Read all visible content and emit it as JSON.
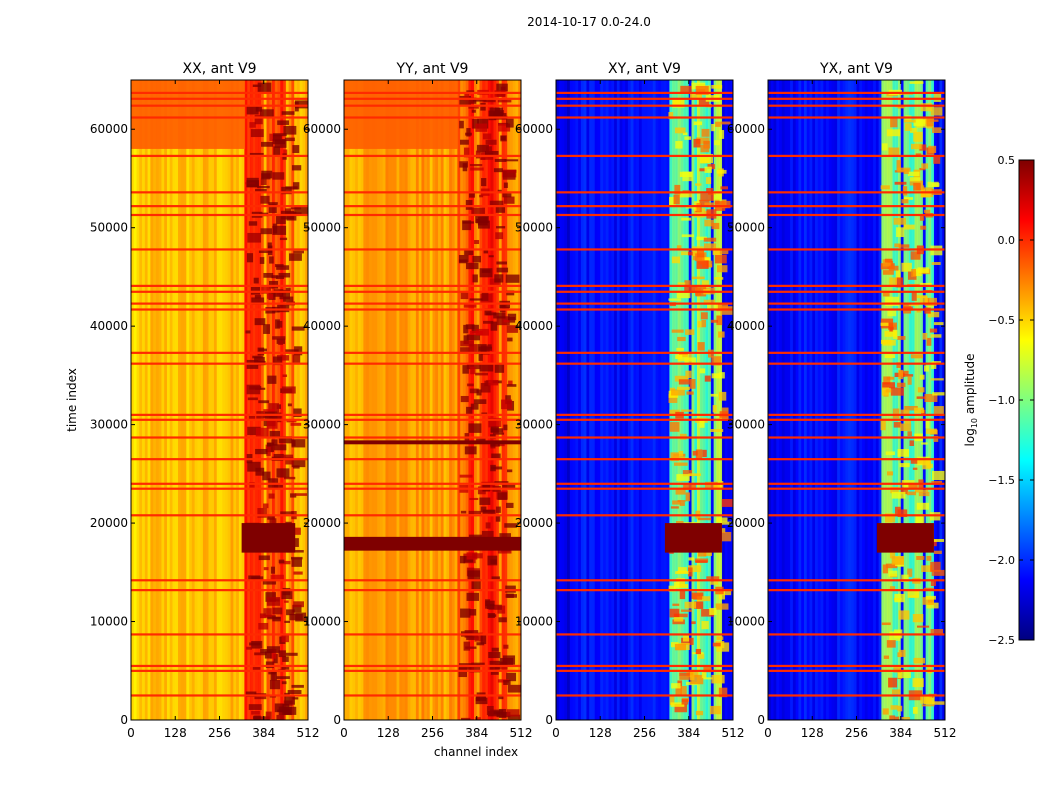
{
  "chart_data": {
    "type": "heatmap",
    "suptitle": "2014-10-17 0.0-24.0",
    "xlabel": "channel index",
    "ylabel": "time index",
    "xlim": [
      0,
      512
    ],
    "ylim": [
      0,
      65000
    ],
    "xticks": [
      0,
      128,
      256,
      384,
      512
    ],
    "yticks": [
      0,
      10000,
      20000,
      30000,
      40000,
      50000,
      60000
    ],
    "colorbar": {
      "label_prefix": "log",
      "label_sub": "10",
      "label_suffix": " amplitude",
      "range": [
        -2.5,
        0.5
      ],
      "ticks": [
        0.5,
        0.0,
        -0.5,
        -1.0,
        -1.5,
        -2.0,
        -2.5
      ],
      "tick_labels": [
        "0.5",
        "0.0",
        "−0.5",
        "−1.0",
        "−1.5",
        "−2.0",
        "−2.5"
      ],
      "colormap": [
        "#00007f",
        "#0000ff",
        "#007fff",
        "#00ffff",
        "#7fff7f",
        "#ffff00",
        "#ff7f00",
        "#ff0000",
        "#7f0000"
      ]
    },
    "panels": [
      {
        "title": "XX, ant V9",
        "base_level": -0.45,
        "band_level": -0.05,
        "band_channels": [
          330,
          475
        ],
        "top_block": {
          "time_range": [
            58000,
            65000
          ],
          "level": -0.15
        },
        "saturated_rows": [
          [
            17000,
            20000
          ]
        ],
        "flagged_rows": [
          2500,
          5000,
          5500,
          8700,
          13200,
          14200,
          20800,
          23500,
          24000,
          26500,
          28700,
          30500,
          31000,
          36200,
          37300,
          41700,
          42300,
          43500,
          44100,
          47800,
          51300,
          52200,
          53600,
          57300,
          61200,
          62400,
          63100,
          63700
        ]
      },
      {
        "title": "YY, ant V9",
        "base_level": -0.35,
        "band_level": -0.05,
        "band_channels": [
          330,
          475
        ],
        "top_block": {
          "time_range": [
            58000,
            65000
          ],
          "level": -0.15
        },
        "saturated_rows": [
          [
            17200,
            18600
          ],
          [
            28000,
            28400
          ]
        ],
        "flagged_rows": [
          2500,
          5000,
          5500,
          8700,
          13200,
          14200,
          20800,
          23500,
          24000,
          26500,
          28700,
          30500,
          31000,
          36200,
          37300,
          41700,
          42300,
          43500,
          44100,
          47800,
          51300,
          52200,
          53600,
          57300,
          61200,
          62400,
          63100,
          63700
        ]
      },
      {
        "title": "XY, ant V9",
        "base_level": -2.1,
        "band_level": -1.0,
        "band_channels": [
          325,
          480
        ],
        "top_block": null,
        "saturated_rows": [
          [
            17000,
            20000
          ]
        ],
        "flagged_rows": [
          2500,
          5000,
          5500,
          8700,
          13200,
          14200,
          20800,
          23500,
          24000,
          26500,
          28700,
          30500,
          31000,
          36200,
          37300,
          41700,
          42300,
          43500,
          44100,
          47800,
          51300,
          52200,
          53600,
          57300,
          61200,
          62400,
          63100,
          63700
        ]
      },
      {
        "title": "YX, ant V9",
        "base_level": -2.1,
        "band_level": -1.0,
        "band_channels": [
          325,
          480
        ],
        "top_block": null,
        "saturated_rows": [
          [
            17000,
            20000
          ]
        ],
        "flagged_rows": [
          2500,
          5000,
          5500,
          8700,
          13200,
          14200,
          20800,
          23500,
          24000,
          26500,
          28700,
          30500,
          31000,
          36200,
          37300,
          41700,
          42300,
          43500,
          44100,
          47800,
          51300,
          52200,
          53600,
          57300,
          61200,
          62400,
          63100,
          63700
        ]
      }
    ]
  }
}
